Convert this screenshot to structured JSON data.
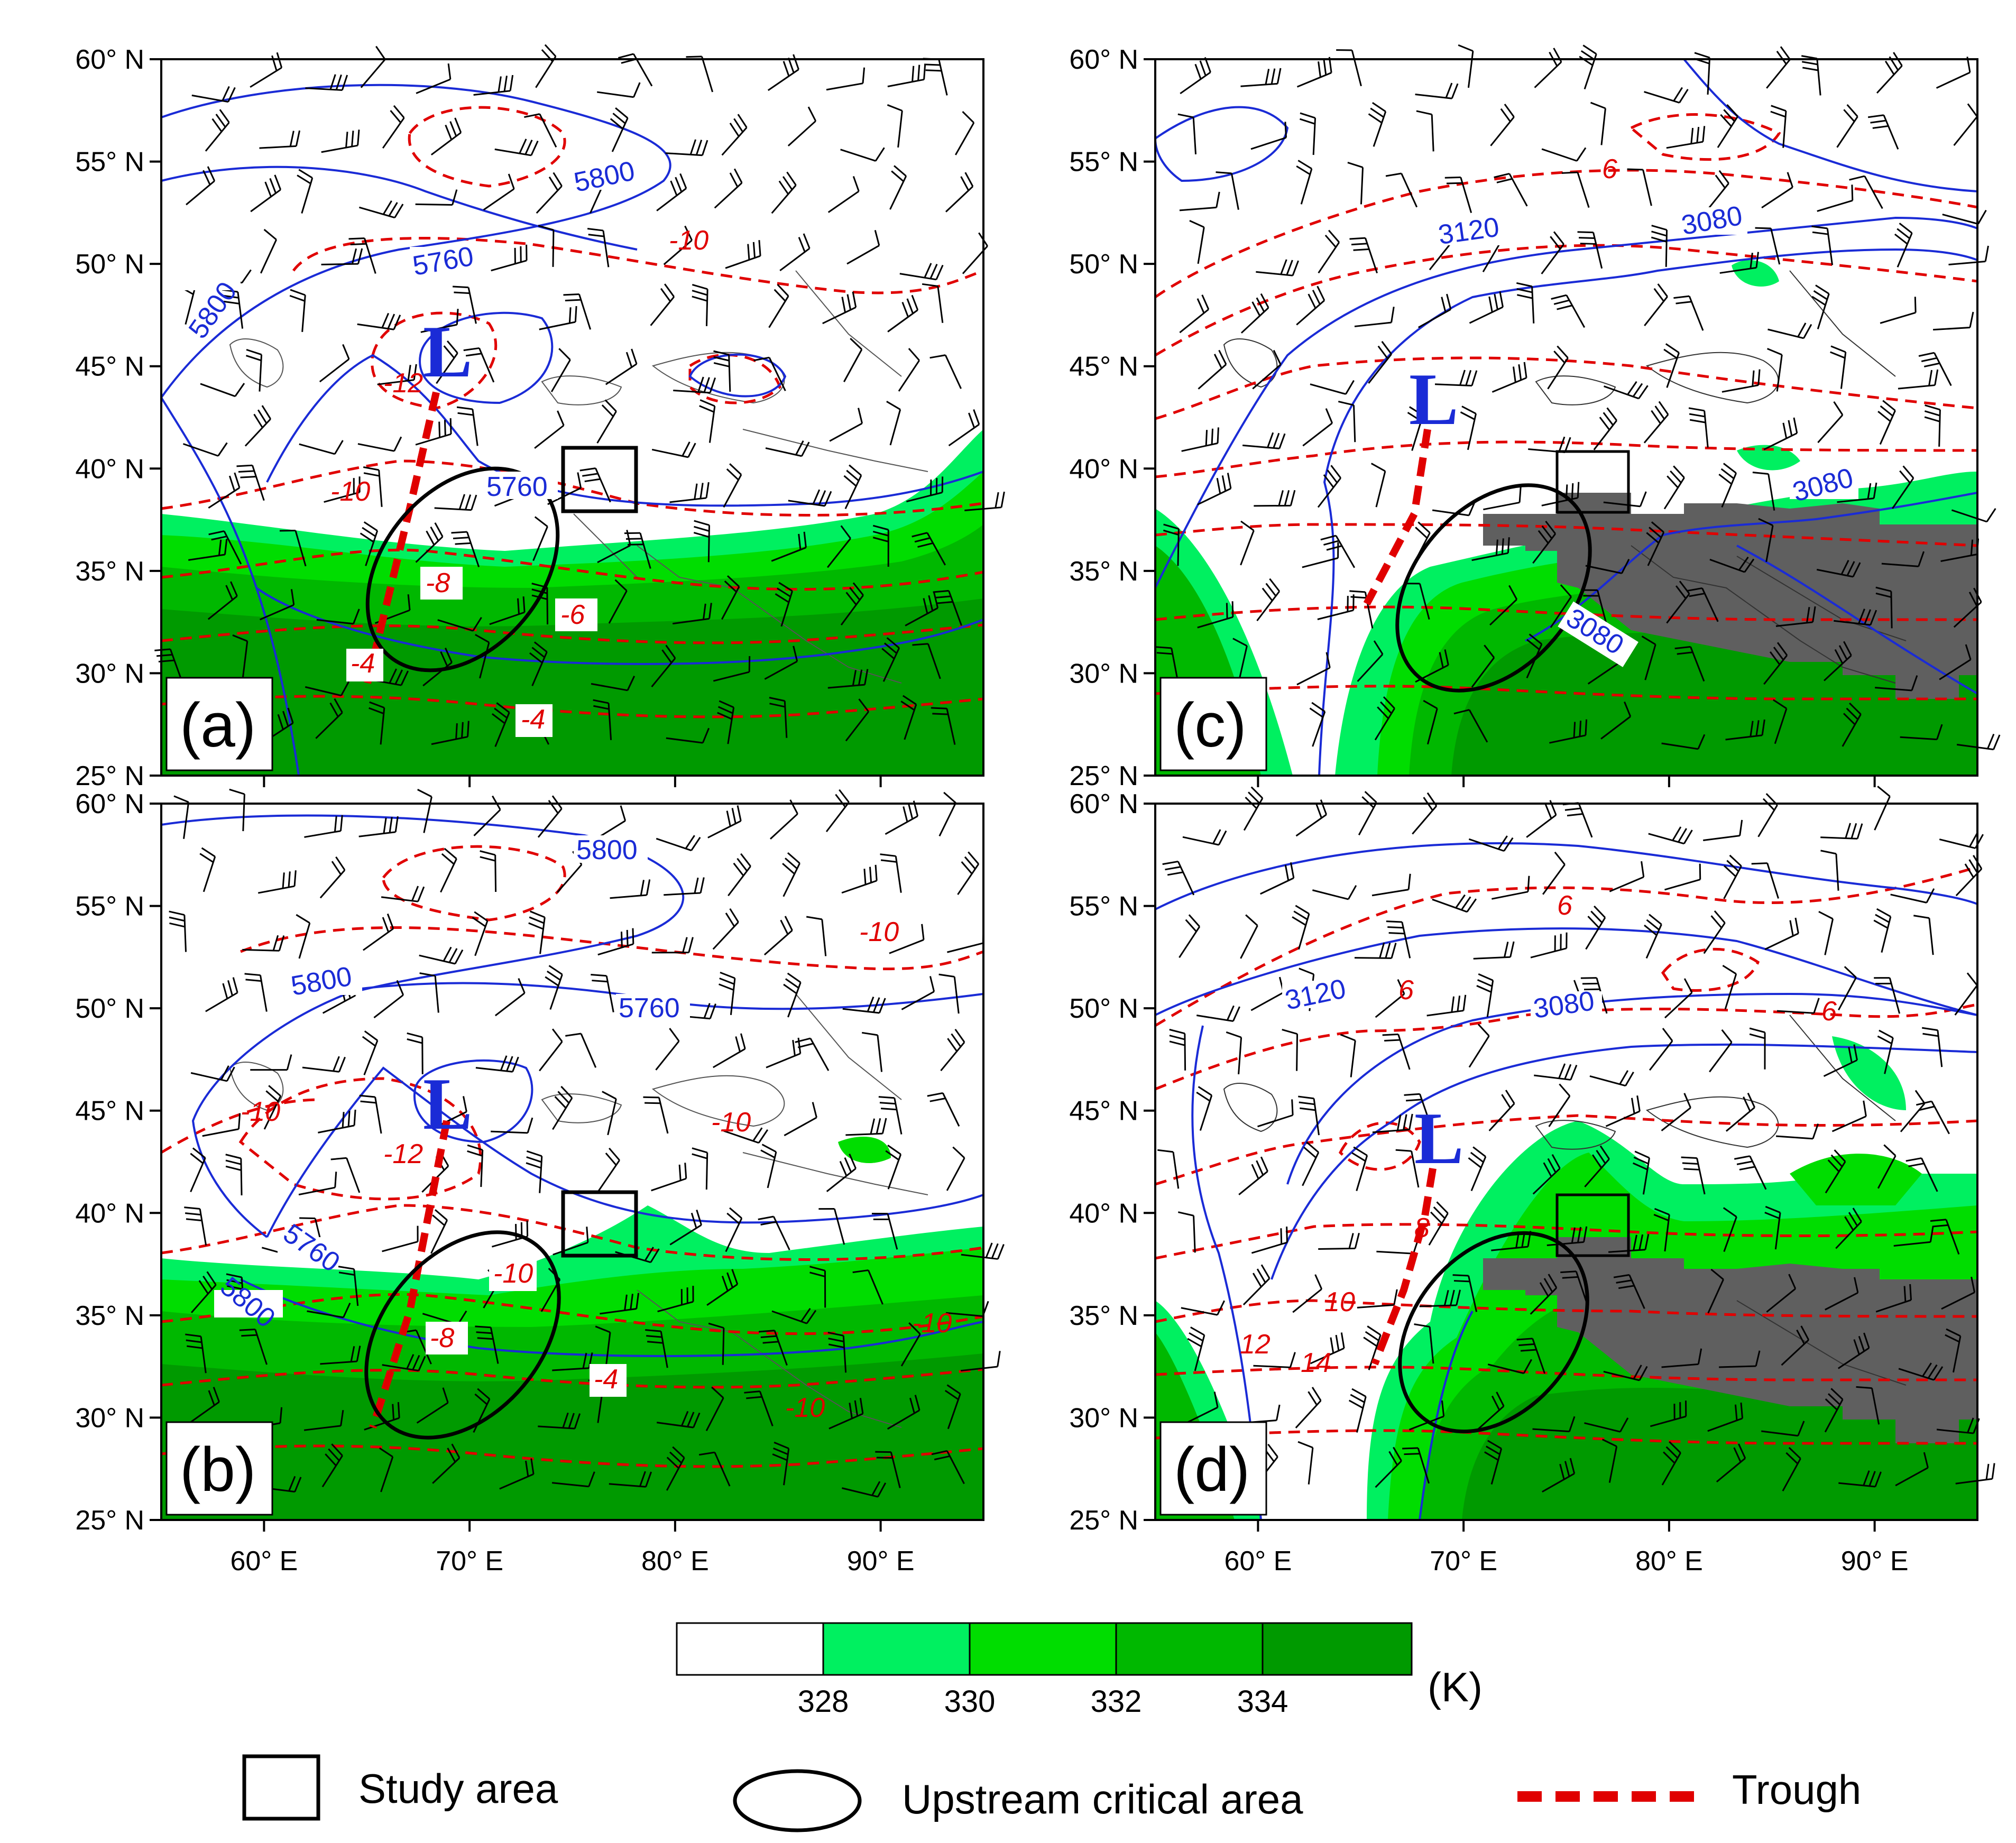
{
  "panels": [
    {
      "id": "a",
      "label": "(a)",
      "low_label": "L",
      "height_contour_labels": [
        "5800",
        "5760",
        "5800",
        "5760"
      ],
      "temperature_contour_labels": [
        "-10",
        "-12",
        "-10",
        "-8",
        "-6",
        "-4",
        "-4"
      ]
    },
    {
      "id": "b",
      "label": "(b)",
      "low_label": "L",
      "height_contour_labels": [
        "5800",
        "5800",
        "5760",
        "5760",
        "5800"
      ],
      "temperature_contour_labels": [
        "-10",
        "-10",
        "-12",
        "-10",
        "-10",
        "-8",
        "-4",
        "-10",
        "-10"
      ]
    },
    {
      "id": "c",
      "label": "(c)",
      "low_label": "L",
      "height_contour_labels": [
        "3120",
        "3080",
        "3080",
        "3080"
      ],
      "temperature_contour_labels": [
        "6"
      ]
    },
    {
      "id": "d",
      "label": "(d)",
      "low_label": "L",
      "height_contour_labels": [
        "3120",
        "3080"
      ],
      "temperature_contour_labels": [
        "6",
        "6",
        "6",
        "8",
        "10",
        "12",
        "14"
      ]
    }
  ],
  "axes": {
    "lat_ticks": [
      "60° N",
      "55° N",
      "50° N",
      "45° N",
      "40° N",
      "35° N",
      "30° N",
      "25° N"
    ],
    "lon_ticks": [
      "60° E",
      "70° E",
      "80° E",
      "90° E"
    ],
    "lat_range": [
      25,
      60
    ],
    "lon_range": [
      55,
      95
    ]
  },
  "colorbar": {
    "tick_labels": [
      "328",
      "330",
      "332",
      "334"
    ],
    "unit": "(K)",
    "colors": [
      "#ffffff",
      "#00f060",
      "#00dd00",
      "#00b800",
      "#009a00"
    ]
  },
  "legend": {
    "study_area": "Study area",
    "upstream": "Upstream critical area",
    "trough": "Trough"
  },
  "colors": {
    "height_contour": "#1a2bd6",
    "temperature_contour": "#e00000",
    "trough": "#e00000",
    "terrain_mask": "#5f5f5f"
  }
}
